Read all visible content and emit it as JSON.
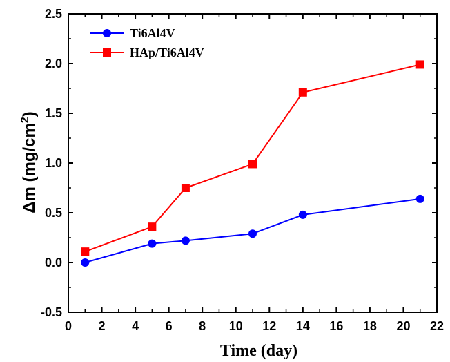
{
  "chart_data": {
    "type": "line",
    "xlabel": "Time (day)",
    "ylabel": {
      "main": "Δm (mg/cm",
      "sup": "2",
      "end": ")"
    },
    "xlim": [
      0,
      22
    ],
    "ylim": [
      -0.5,
      2.5
    ],
    "x_ticks": [
      0,
      2,
      4,
      6,
      8,
      10,
      12,
      14,
      16,
      18,
      20,
      22
    ],
    "x_tick_labels": [
      "0",
      "2",
      "4",
      "6",
      "8",
      "10",
      "12",
      "14",
      "16",
      "18",
      "20",
      "22"
    ],
    "y_ticks": [
      -0.5,
      0.0,
      0.5,
      1.0,
      1.5,
      2.0,
      2.5
    ],
    "y_tick_labels": [
      "-0.5",
      "0.0",
      "0.5",
      "1.0",
      "1.5",
      "2.0",
      "2.5"
    ],
    "grid": false,
    "legend_position": "top-left",
    "series": [
      {
        "name": "Ti6Al4V",
        "color": "#0000ff",
        "marker": "circle",
        "x": [
          1,
          5,
          7,
          11,
          14,
          21
        ],
        "values": [
          0.0,
          0.19,
          0.22,
          0.29,
          0.48,
          0.64
        ]
      },
      {
        "name": "HAp/Ti6Al4V",
        "color": "#ff0000",
        "marker": "square",
        "x": [
          1,
          5,
          7,
          11,
          14,
          21
        ],
        "values": [
          0.11,
          0.36,
          0.75,
          0.99,
          1.71,
          1.99
        ]
      }
    ]
  }
}
